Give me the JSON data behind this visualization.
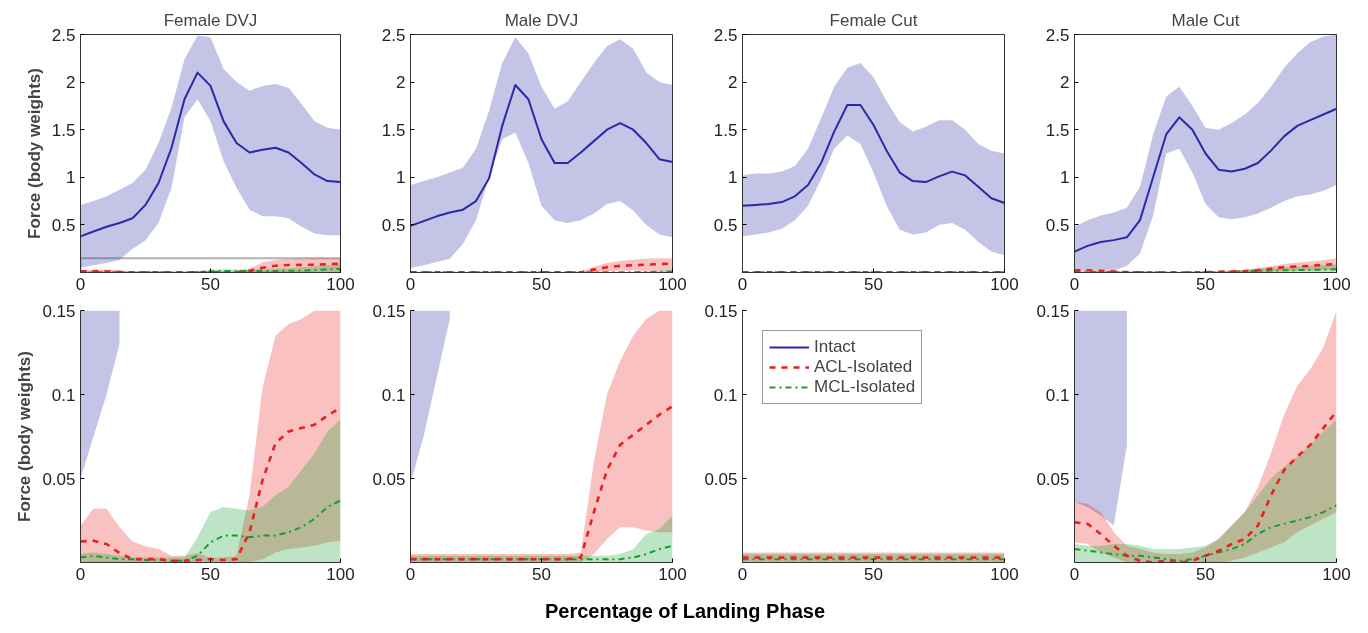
{
  "chart_data": [
    {
      "type": "line",
      "title": "Female DVJ",
      "ylabel": "Force (body weights)",
      "x": [
        0,
        5,
        10,
        15,
        20,
        25,
        30,
        35,
        40,
        45,
        50,
        55,
        60,
        65,
        70,
        75,
        80,
        85,
        90,
        95,
        100
      ],
      "xlim": [
        0,
        100
      ],
      "xticks": [
        0,
        50,
        100
      ],
      "ylim": [
        0,
        2.5
      ],
      "yticks": [
        0.5,
        1,
        1.5,
        2,
        2.5
      ],
      "grid": false,
      "legend": false,
      "series": [
        {
          "color": "#2a2aa8",
          "line_style": "solid",
          "values": [
            0.38,
            0.43,
            0.48,
            0.52,
            0.57,
            0.71,
            0.94,
            1.31,
            1.82,
            2.1,
            1.96,
            1.59,
            1.36,
            1.26,
            1.29,
            1.31,
            1.26,
            1.15,
            1.03,
            0.96,
            0.95
          ],
          "upper": [
            0.71,
            0.75,
            0.8,
            0.87,
            0.94,
            1.08,
            1.36,
            1.73,
            2.24,
            2.49,
            2.47,
            2.14,
            2.0,
            1.91,
            1.96,
            1.98,
            1.94,
            1.77,
            1.59,
            1.52,
            1.5
          ],
          "lower": [
            0.05,
            0.075,
            0.1,
            0.13,
            0.25,
            0.34,
            0.52,
            0.89,
            1.63,
            1.82,
            1.59,
            1.17,
            0.89,
            0.66,
            0.59,
            0.59,
            0.57,
            0.48,
            0.41,
            0.39,
            0.39
          ]
        },
        {
          "color": "#e8201e",
          "line_style": "dashed",
          "values": [
            0.0125,
            0.013,
            0.011,
            0.0056,
            0.002,
            0.002,
            0.002,
            0.001,
            0.001,
            0.0015,
            0.002,
            0.0015,
            0.002,
            0.018,
            0.049,
            0.071,
            0.078,
            0.08,
            0.082,
            0.0875,
            0.092
          ],
          "upper": [
            0.022,
            0.032,
            0.032,
            0.021,
            0.0125,
            0.0097,
            0.008,
            0.004,
            0.004,
            0.0056,
            0.003,
            0.003,
            0.004,
            0.04,
            0.104,
            0.135,
            0.142,
            0.145,
            0.15,
            0.15,
            0.15
          ],
          "lower": [
            0,
            0,
            0,
            0,
            0,
            0,
            0,
            0,
            0,
            0,
            0,
            0,
            0,
            0,
            0.002,
            0.006,
            0.008,
            0.009,
            0.01,
            0.012,
            0.013
          ]
        },
        {
          "color": "#12a02e",
          "line_style": "dashdot",
          "values": [
            0.003,
            0.004,
            0.003,
            0.002,
            0.002,
            0.0015,
            0.0015,
            0.001,
            0.001,
            0.004,
            0.012,
            0.016,
            0.016,
            0.015,
            0.016,
            0.016,
            0.018,
            0.021,
            0.026,
            0.033,
            0.037
          ],
          "upper": [
            0.005,
            0.006,
            0.005,
            0.004,
            0.003,
            0.003,
            0.003,
            0.003,
            0.003,
            0.015,
            0.03,
            0.033,
            0.032,
            0.031,
            0.033,
            0.04,
            0.045,
            0.055,
            0.065,
            0.078,
            0.085
          ],
          "lower": [
            0,
            0,
            0,
            0,
            0,
            0,
            0,
            0,
            0,
            0,
            0,
            0,
            0,
            0,
            0,
            0,
            0,
            0,
            0,
            0,
            0
          ]
        }
      ]
    },
    {
      "type": "line",
      "title": "Male DVJ",
      "x": [
        0,
        5,
        10,
        15,
        20,
        25,
        30,
        35,
        40,
        45,
        50,
        55,
        60,
        65,
        70,
        75,
        80,
        85,
        90,
        95,
        100
      ],
      "xlim": [
        0,
        100
      ],
      "xticks": [
        0,
        50,
        100
      ],
      "ylim": [
        0,
        2.5
      ],
      "yticks": [
        0.5,
        1,
        1.5,
        2,
        2.5
      ],
      "grid": false,
      "legend": false,
      "series": [
        {
          "color": "#2a2aa8",
          "line_style": "solid",
          "values": [
            0.49,
            0.54,
            0.59,
            0.63,
            0.66,
            0.75,
            0.99,
            1.54,
            1.97,
            1.82,
            1.4,
            1.15,
            1.15,
            1.26,
            1.38,
            1.5,
            1.57,
            1.5,
            1.36,
            1.19,
            1.16
          ],
          "upper": [
            0.92,
            0.96,
            1.0,
            1.05,
            1.1,
            1.3,
            1.7,
            2.2,
            2.47,
            2.3,
            1.95,
            1.72,
            1.8,
            2.0,
            2.2,
            2.38,
            2.45,
            2.35,
            2.1,
            2.0,
            1.97
          ],
          "lower": [
            0.047,
            0.075,
            0.11,
            0.145,
            0.3,
            0.55,
            1.0,
            1.4,
            1.47,
            1.15,
            0.7,
            0.55,
            0.52,
            0.55,
            0.62,
            0.72,
            0.75,
            0.65,
            0.5,
            0.4,
            0.37
          ]
        },
        {
          "color": "#e8201e",
          "line_style": "dashed",
          "values": [
            0.002,
            0.002,
            0.002,
            0.002,
            0.002,
            0.002,
            0.002,
            0.002,
            0.002,
            0.002,
            0.002,
            0.002,
            0.002,
            0.003,
            0.03,
            0.055,
            0.07,
            0.076,
            0.082,
            0.088,
            0.093
          ],
          "upper": [
            0.005,
            0.005,
            0.005,
            0.005,
            0.005,
            0.005,
            0.005,
            0.005,
            0.005,
            0.005,
            0.005,
            0.005,
            0.005,
            0.006,
            0.06,
            0.1,
            0.12,
            0.135,
            0.145,
            0.15,
            0.15
          ],
          "lower": [
            0,
            0,
            0,
            0,
            0,
            0,
            0,
            0,
            0,
            0,
            0,
            0,
            0,
            0,
            0.005,
            0.014,
            0.021,
            0.021,
            0.019,
            0.018,
            0.018
          ]
        },
        {
          "color": "#12a02e",
          "line_style": "dashdot",
          "values": [
            0.002,
            0.002,
            0.002,
            0.002,
            0.002,
            0.002,
            0.002,
            0.002,
            0.002,
            0.002,
            0.002,
            0.002,
            0.002,
            0.002,
            0.002,
            0.002,
            0.002,
            0.003,
            0.005,
            0.008,
            0.01
          ],
          "upper": [
            0.004,
            0.004,
            0.004,
            0.004,
            0.004,
            0.004,
            0.004,
            0.004,
            0.004,
            0.004,
            0.004,
            0.004,
            0.004,
            0.004,
            0.004,
            0.004,
            0.005,
            0.008,
            0.017,
            0.02,
            0.028
          ],
          "lower": [
            0,
            0,
            0,
            0,
            0,
            0,
            0,
            0,
            0,
            0,
            0,
            0,
            0,
            0,
            0,
            0,
            0,
            0,
            0,
            0,
            0
          ]
        }
      ]
    },
    {
      "type": "line",
      "title": "Female Cut",
      "x": [
        0,
        5,
        10,
        15,
        20,
        25,
        30,
        35,
        40,
        45,
        50,
        55,
        60,
        65,
        70,
        75,
        80,
        85,
        90,
        95,
        100
      ],
      "xlim": [
        0,
        100
      ],
      "xticks": [
        0,
        50,
        100
      ],
      "ylim": [
        0,
        2.5
      ],
      "yticks": [
        0.5,
        1,
        1.5,
        2,
        2.5
      ],
      "grid": false,
      "legend": false,
      "series": [
        {
          "color": "#2a2aa8",
          "line_style": "solid",
          "values": [
            0.7,
            0.71,
            0.72,
            0.74,
            0.8,
            0.92,
            1.15,
            1.48,
            1.76,
            1.76,
            1.55,
            1.28,
            1.05,
            0.96,
            0.95,
            1.01,
            1.06,
            1.02,
            0.9,
            0.78,
            0.73
          ],
          "upper": [
            1.02,
            1.04,
            1.04,
            1.06,
            1.12,
            1.3,
            1.62,
            1.95,
            2.15,
            2.2,
            2.05,
            1.8,
            1.58,
            1.48,
            1.53,
            1.6,
            1.6,
            1.5,
            1.35,
            1.28,
            1.25
          ],
          "lower": [
            0.38,
            0.4,
            0.42,
            0.46,
            0.55,
            0.7,
            0.98,
            1.3,
            1.44,
            1.35,
            1.05,
            0.7,
            0.45,
            0.4,
            0.42,
            0.5,
            0.52,
            0.45,
            0.32,
            0.22,
            0.18
          ]
        },
        {
          "color": "#e8201e",
          "line_style": "dashed",
          "values": [
            0.003,
            0.003,
            0.003,
            0.003,
            0.003,
            0.003,
            0.003,
            0.003,
            0.003,
            0.003,
            0.003,
            0.003,
            0.003,
            0.003,
            0.003,
            0.003,
            0.003,
            0.003,
            0.003,
            0.003,
            0.003
          ]
        },
        {
          "color": "#12a02e",
          "line_style": "dashdot",
          "values": [
            0.002,
            0.002,
            0.002,
            0.002,
            0.002,
            0.002,
            0.002,
            0.002,
            0.002,
            0.002,
            0.002,
            0.002,
            0.002,
            0.002,
            0.002,
            0.002,
            0.002,
            0.002,
            0.002,
            0.002,
            0.002
          ]
        }
      ]
    },
    {
      "type": "line",
      "title": "Male Cut",
      "x": [
        0,
        5,
        10,
        15,
        20,
        25,
        30,
        35,
        40,
        45,
        50,
        55,
        60,
        65,
        70,
        75,
        80,
        85,
        90,
        95,
        100
      ],
      "xlim": [
        0,
        100
      ],
      "xticks": [
        0,
        50,
        100
      ],
      "ylim": [
        0,
        2.5
      ],
      "yticks": [
        0.5,
        1,
        1.5,
        2,
        2.5
      ],
      "grid": false,
      "legend": false,
      "series": [
        {
          "color": "#2a2aa8",
          "line_style": "solid",
          "values": [
            0.22,
            0.28,
            0.32,
            0.34,
            0.37,
            0.55,
            1.0,
            1.45,
            1.63,
            1.5,
            1.25,
            1.08,
            1.06,
            1.09,
            1.15,
            1.28,
            1.43,
            1.54,
            1.6,
            1.66,
            1.72
          ],
          "upper": [
            0.48,
            0.55,
            0.6,
            0.63,
            0.68,
            0.9,
            1.45,
            1.85,
            1.95,
            1.75,
            1.52,
            1.5,
            1.57,
            1.66,
            1.78,
            1.95,
            2.15,
            2.3,
            2.42,
            2.48,
            2.5
          ],
          "lower": [
            0.036,
            0.033,
            0.028,
            0.022,
            0.07,
            0.2,
            0.6,
            1.25,
            1.3,
            1.05,
            0.72,
            0.58,
            0.56,
            0.58,
            0.62,
            0.68,
            0.75,
            0.8,
            0.82,
            0.86,
            0.92
          ]
        },
        {
          "color": "#e8201e",
          "line_style": "dashed",
          "values": [
            0.024,
            0.023,
            0.017,
            0.01,
            0.004,
            0.001,
            0,
            0.001,
            0,
            0.001,
            0.004,
            0.007,
            0.011,
            0.014,
            0.022,
            0.04,
            0.055,
            0.063,
            0.07,
            0.08,
            0.09
          ],
          "upper": [
            0.036,
            0.035,
            0.03,
            0.018,
            0.01,
            0.008,
            0.006,
            0.005,
            0.005,
            0.006,
            0.009,
            0.014,
            0.022,
            0.03,
            0.045,
            0.065,
            0.088,
            0.105,
            0.115,
            0.128,
            0.15
          ],
          "lower": [
            0.012,
            0.011,
            0.006,
            0.003,
            0,
            0,
            0,
            0,
            0,
            0,
            0,
            0,
            0.001,
            0.003,
            0.006,
            0.009,
            0.012,
            0.018,
            0.022,
            0.026,
            0.03
          ]
        },
        {
          "color": "#12a02e",
          "line_style": "dashdot",
          "values": [
            0.008,
            0.007,
            0.006,
            0.005,
            0.004,
            0.004,
            0.003,
            0.002,
            0.001,
            0.002,
            0.004,
            0.006,
            0.008,
            0.011,
            0.017,
            0.021,
            0.023,
            0.025,
            0.027,
            0.03,
            0.034
          ],
          "upper": [
            0.011,
            0.01,
            0.01,
            0.011,
            0.011,
            0.01,
            0.008,
            0.008,
            0.008,
            0.009,
            0.01,
            0.014,
            0.022,
            0.03,
            0.04,
            0.05,
            0.057,
            0.063,
            0.07,
            0.078,
            0.085
          ],
          "lower": [
            0,
            0,
            0,
            0,
            0,
            0,
            0,
            0,
            0,
            0,
            0,
            0,
            0,
            0,
            0,
            0,
            0,
            0,
            0,
            0,
            0
          ]
        }
      ]
    },
    {
      "type": "line",
      "ylabel": "Force (body weights)",
      "x": [
        0,
        5,
        10,
        15,
        20,
        25,
        30,
        35,
        40,
        45,
        50,
        55,
        60,
        65,
        70,
        75,
        80,
        85,
        90,
        95,
        100
      ],
      "xlim": [
        0,
        100
      ],
      "xticks": [
        0,
        50,
        100
      ],
      "ylim": [
        0,
        0.15
      ],
      "yticks": [
        0.05,
        0.1,
        0.15
      ],
      "grid": false,
      "legend": false,
      "series": [
        {
          "color": "#2a2aa8",
          "line_style": "solid",
          "values": [
            null,
            null,
            null,
            null,
            null,
            null,
            null,
            null,
            null,
            null,
            null,
            null,
            null,
            null,
            null,
            null,
            null,
            null,
            null,
            null,
            null
          ],
          "lower": [
            0.05,
            0.075,
            0.1,
            0.13,
            null,
            null,
            null,
            null,
            null,
            null,
            null,
            null,
            null,
            null,
            null,
            null,
            null,
            null,
            null,
            null,
            null
          ],
          "upper": [
            0.15,
            0.15,
            0.15,
            0.15,
            null,
            null,
            null,
            null,
            null,
            null,
            null,
            null,
            null,
            null,
            null,
            null,
            null,
            null,
            null,
            null,
            null
          ]
        },
        {
          "color": "#e8201e",
          "line_style": "dashed",
          "values": [
            0.0125,
            0.013,
            0.011,
            0.0056,
            0.002,
            0.002,
            0.002,
            0.001,
            0.001,
            0.0015,
            0.002,
            0.0015,
            0.002,
            0.018,
            0.049,
            0.071,
            0.078,
            0.08,
            0.082,
            0.0875,
            0.092
          ],
          "upper": [
            0.022,
            0.032,
            0.032,
            0.021,
            0.0125,
            0.0097,
            0.008,
            0.004,
            0.004,
            0.0056,
            0.003,
            0.003,
            0.004,
            0.04,
            0.104,
            0.135,
            0.142,
            0.145,
            0.15,
            0.15,
            0.15
          ],
          "lower": [
            0,
            0,
            0,
            0,
            0,
            0,
            0,
            0,
            0,
            0,
            0,
            0,
            0,
            0,
            0.002,
            0.006,
            0.008,
            0.009,
            0.01,
            0.012,
            0.013
          ]
        },
        {
          "color": "#12a02e",
          "line_style": "dashdot",
          "values": [
            0.003,
            0.004,
            0.003,
            0.002,
            0.002,
            0.0015,
            0.0015,
            0.001,
            0.001,
            0.004,
            0.012,
            0.016,
            0.016,
            0.015,
            0.016,
            0.016,
            0.018,
            0.021,
            0.026,
            0.033,
            0.037
          ],
          "upper": [
            0.005,
            0.006,
            0.005,
            0.004,
            0.003,
            0.003,
            0.003,
            0.003,
            0.003,
            0.015,
            0.03,
            0.033,
            0.032,
            0.031,
            0.033,
            0.04,
            0.045,
            0.055,
            0.065,
            0.078,
            0.085
          ],
          "lower": [
            0,
            0,
            0,
            0,
            0,
            0,
            0,
            0,
            0,
            0,
            0,
            0,
            0,
            0,
            0,
            0,
            0,
            0,
            0,
            0,
            0
          ]
        }
      ]
    },
    {
      "type": "line",
      "xlabel": "Percentage of Landing Phase",
      "x": [
        0,
        5,
        10,
        15,
        20,
        25,
        30,
        35,
        40,
        45,
        50,
        55,
        60,
        65,
        70,
        75,
        80,
        85,
        90,
        95,
        100
      ],
      "xlim": [
        0,
        100
      ],
      "xticks": [
        0,
        50,
        100
      ],
      "ylim": [
        0,
        0.15
      ],
      "yticks": [
        0.05,
        0.1,
        0.15
      ],
      "grid": false,
      "legend": false,
      "series": [
        {
          "color": "#2a2aa8",
          "line_style": "solid",
          "values": [
            null,
            null,
            null,
            null,
            null,
            null,
            null,
            null,
            null,
            null,
            null,
            null,
            null,
            null,
            null,
            null,
            null,
            null,
            null,
            null,
            null
          ],
          "lower": [
            0.047,
            0.075,
            0.11,
            0.145,
            null,
            null,
            null,
            null,
            null,
            null,
            null,
            null,
            null,
            null,
            null,
            null,
            null,
            null,
            null,
            null,
            null
          ],
          "upper": [
            0.15,
            0.15,
            0.15,
            0.15,
            null,
            null,
            null,
            null,
            null,
            null,
            null,
            null,
            null,
            null,
            null,
            null,
            null,
            null,
            null,
            null,
            null
          ]
        },
        {
          "color": "#e8201e",
          "line_style": "dashed",
          "values": [
            0.002,
            0.002,
            0.002,
            0.002,
            0.002,
            0.002,
            0.002,
            0.002,
            0.002,
            0.002,
            0.002,
            0.002,
            0.002,
            0.003,
            0.03,
            0.055,
            0.07,
            0.076,
            0.082,
            0.088,
            0.093
          ],
          "upper": [
            0.005,
            0.005,
            0.005,
            0.005,
            0.005,
            0.005,
            0.005,
            0.005,
            0.005,
            0.005,
            0.005,
            0.005,
            0.005,
            0.006,
            0.06,
            0.1,
            0.12,
            0.135,
            0.145,
            0.15,
            0.15
          ],
          "lower": [
            0,
            0,
            0,
            0,
            0,
            0,
            0,
            0,
            0,
            0,
            0,
            0,
            0,
            0,
            0.005,
            0.014,
            0.021,
            0.021,
            0.019,
            0.018,
            0.018
          ]
        },
        {
          "color": "#12a02e",
          "line_style": "dashdot",
          "values": [
            0.002,
            0.002,
            0.002,
            0.002,
            0.002,
            0.002,
            0.002,
            0.002,
            0.002,
            0.002,
            0.002,
            0.002,
            0.002,
            0.002,
            0.002,
            0.002,
            0.002,
            0.003,
            0.005,
            0.008,
            0.01
          ],
          "upper": [
            0.004,
            0.004,
            0.004,
            0.004,
            0.004,
            0.004,
            0.004,
            0.004,
            0.004,
            0.004,
            0.004,
            0.004,
            0.004,
            0.004,
            0.004,
            0.004,
            0.005,
            0.008,
            0.017,
            0.02,
            0.028
          ],
          "lower": [
            0,
            0,
            0,
            0,
            0,
            0,
            0,
            0,
            0,
            0,
            0,
            0,
            0,
            0,
            0,
            0,
            0,
            0,
            0,
            0,
            0
          ]
        }
      ]
    },
    {
      "type": "line",
      "x": [
        0,
        5,
        10,
        15,
        20,
        25,
        30,
        35,
        40,
        45,
        50,
        55,
        60,
        65,
        70,
        75,
        80,
        85,
        90,
        95,
        100
      ],
      "xlim": [
        0,
        100
      ],
      "xticks": [
        0,
        50,
        100
      ],
      "ylim": [
        0,
        0.15
      ],
      "yticks": [
        0.05,
        0.1,
        0.15
      ],
      "grid": false,
      "legend": "top left",
      "series": [
        {
          "name": "Intact",
          "color": "#2a2aa8",
          "line_style": "solid",
          "values": [
            null,
            null,
            null,
            null,
            null,
            null,
            null,
            null,
            null,
            null,
            null,
            null,
            null,
            null,
            null,
            null,
            null,
            null,
            null,
            null,
            null
          ]
        },
        {
          "name": "ACL-Isolated",
          "color": "#e8201e",
          "line_style": "dashed",
          "values": [
            0.003,
            0.003,
            0.003,
            0.003,
            0.003,
            0.003,
            0.003,
            0.003,
            0.003,
            0.003,
            0.003,
            0.003,
            0.003,
            0.003,
            0.003,
            0.003,
            0.003,
            0.003,
            0.003,
            0.003,
            0.003
          ],
          "upper": [
            0.006,
            0.006,
            0.006,
            0.006,
            0.006,
            0.006,
            0.006,
            0.006,
            0.006,
            0.006,
            0.006,
            0.006,
            0.006,
            0.006,
            0.006,
            0.006,
            0.006,
            0.006,
            0.006,
            0.006,
            0.006
          ],
          "lower": [
            0,
            0,
            0,
            0,
            0,
            0,
            0,
            0,
            0,
            0,
            0,
            0,
            0,
            0,
            0,
            0,
            0,
            0,
            0,
            0,
            0
          ]
        },
        {
          "name": "MCL-Isolated",
          "color": "#12a02e",
          "line_style": "dashdot",
          "values": [
            0.002,
            0.002,
            0.002,
            0.002,
            0.002,
            0.002,
            0.002,
            0.002,
            0.002,
            0.002,
            0.002,
            0.002,
            0.002,
            0.002,
            0.002,
            0.002,
            0.002,
            0.002,
            0.002,
            0.002,
            0.002
          ],
          "upper": [
            0.005,
            0.005,
            0.005,
            0.005,
            0.005,
            0.005,
            0.005,
            0.005,
            0.005,
            0.005,
            0.005,
            0.005,
            0.005,
            0.005,
            0.005,
            0.005,
            0.005,
            0.005,
            0.005,
            0.005,
            0.005
          ],
          "lower": [
            0,
            0,
            0,
            0,
            0,
            0,
            0,
            0,
            0,
            0,
            0,
            0,
            0,
            0,
            0,
            0,
            0,
            0,
            0,
            0,
            0
          ]
        }
      ]
    },
    {
      "type": "line",
      "x": [
        0,
        5,
        10,
        15,
        20,
        25,
        30,
        35,
        40,
        45,
        50,
        55,
        60,
        65,
        70,
        75,
        80,
        85,
        90,
        95,
        100
      ],
      "xlim": [
        0,
        100
      ],
      "xticks": [
        0,
        50,
        100
      ],
      "ylim": [
        0,
        0.15
      ],
      "yticks": [
        0.05,
        0.1,
        0.15
      ],
      "grid": false,
      "legend": false,
      "series": [
        {
          "color": "#2a2aa8",
          "line_style": "solid",
          "values": [
            null,
            null,
            null,
            null,
            null,
            null,
            null,
            null,
            null,
            null,
            null,
            null,
            null,
            null,
            null,
            null,
            null,
            null,
            null,
            null,
            null
          ],
          "lower": [
            0.036,
            0.033,
            0.028,
            0.022,
            0.07,
            null,
            null,
            null,
            null,
            null,
            null,
            null,
            null,
            null,
            null,
            null,
            null,
            null,
            null,
            null,
            null
          ],
          "upper": [
            0.15,
            0.15,
            0.15,
            0.15,
            0.15,
            null,
            null,
            null,
            null,
            null,
            null,
            null,
            null,
            null,
            null,
            null,
            null,
            null,
            null,
            null,
            null
          ]
        },
        {
          "color": "#e8201e",
          "line_style": "dashed",
          "values": [
            0.024,
            0.023,
            0.017,
            0.01,
            0.004,
            0.001,
            0,
            0.001,
            0,
            0.001,
            0.004,
            0.007,
            0.011,
            0.014,
            0.022,
            0.04,
            0.055,
            0.063,
            0.07,
            0.08,
            0.09
          ],
          "upper": [
            0.036,
            0.035,
            0.03,
            0.018,
            0.01,
            0.008,
            0.006,
            0.005,
            0.005,
            0.006,
            0.009,
            0.014,
            0.022,
            0.03,
            0.045,
            0.065,
            0.088,
            0.105,
            0.115,
            0.128,
            0.15
          ],
          "lower": [
            0.012,
            0.011,
            0.006,
            0.003,
            0,
            0,
            0,
            0,
            0,
            0,
            0,
            0,
            0.001,
            0.003,
            0.006,
            0.009,
            0.012,
            0.018,
            0.022,
            0.026,
            0.03
          ]
        },
        {
          "color": "#12a02e",
          "line_style": "dashdot",
          "values": [
            0.008,
            0.007,
            0.006,
            0.005,
            0.004,
            0.004,
            0.003,
            0.002,
            0.001,
            0.002,
            0.004,
            0.006,
            0.008,
            0.011,
            0.017,
            0.021,
            0.023,
            0.025,
            0.027,
            0.03,
            0.034
          ],
          "upper": [
            0.011,
            0.01,
            0.01,
            0.011,
            0.011,
            0.01,
            0.008,
            0.008,
            0.008,
            0.009,
            0.01,
            0.014,
            0.022,
            0.03,
            0.04,
            0.05,
            0.057,
            0.063,
            0.07,
            0.078,
            0.085
          ],
          "lower": [
            0,
            0,
            0,
            0,
            0,
            0,
            0,
            0,
            0,
            0,
            0,
            0,
            0,
            0,
            0,
            0,
            0,
            0,
            0,
            0,
            0
          ]
        }
      ]
    }
  ]
}
